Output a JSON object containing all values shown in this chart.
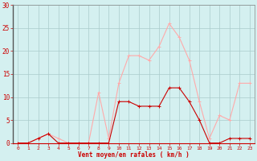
{
  "x": [
    0,
    1,
    2,
    3,
    4,
    5,
    6,
    7,
    8,
    9,
    10,
    11,
    12,
    13,
    14,
    15,
    16,
    17,
    18,
    19,
    20,
    21,
    22,
    23
  ],
  "wind_avg": [
    0,
    0,
    1,
    2,
    0,
    0,
    0,
    0,
    0,
    0,
    9,
    9,
    8,
    8,
    8,
    12,
    12,
    9,
    5,
    0,
    0,
    1,
    1,
    1
  ],
  "wind_gust": [
    0,
    0,
    1,
    2,
    1,
    0,
    0,
    0,
    11,
    1,
    13,
    19,
    19,
    18,
    21,
    26,
    23,
    18,
    9,
    1,
    6,
    5,
    13,
    13
  ],
  "color_avg": "#cc0000",
  "color_gust": "#ffaaaa",
  "background": "#d4f0f0",
  "grid_color": "#aacccc",
  "xlabel": "Vent moyen/en rafales ( km/h )",
  "ylabel_ticks": [
    0,
    5,
    10,
    15,
    20,
    25,
    30
  ],
  "ylim": [
    0,
    30
  ],
  "xlim": [
    -0.5,
    23.5
  ]
}
